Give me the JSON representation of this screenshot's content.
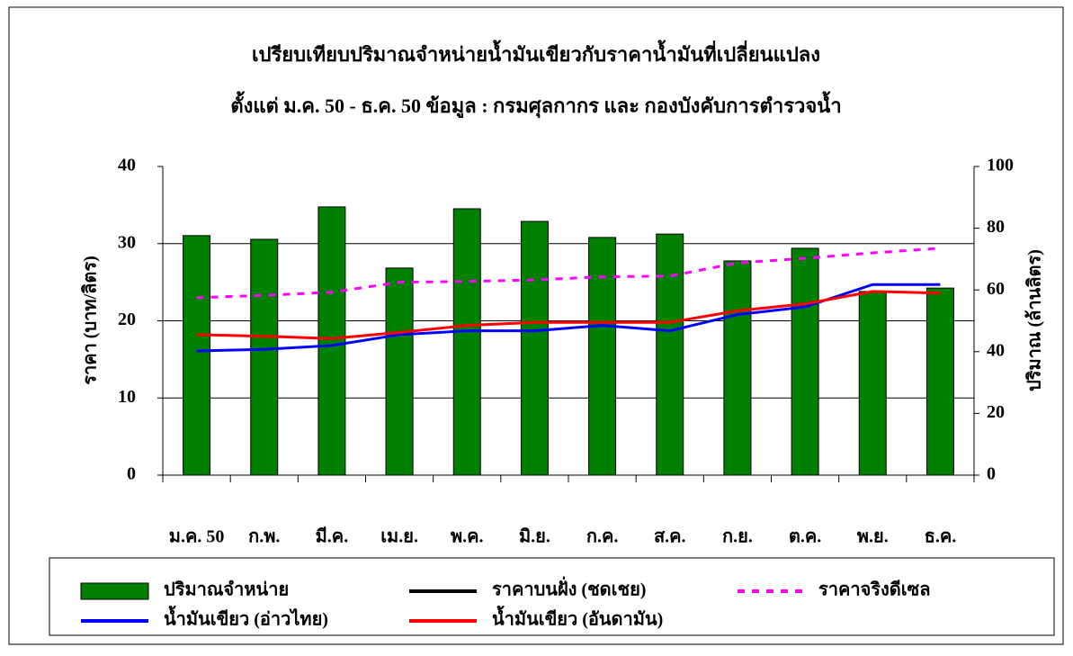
{
  "chart_data": {
    "type": "bar",
    "title": "เปรียบเทียบปริมาณจำหน่ายน้ำมันเขียวกับราคาน้ำมันที่เปลี่ยนแปลง",
    "subtitle": "ตั้งแต่ ม.ค. 50 - ธ.ค. 50    ข้อมูล : กรมศุลกากร  และ กองบังคับการตำรวจน้ำ",
    "y_label": "ราคา (บาท/ลิตร)",
    "y2_label": "ปริมาณ (ล้านลิตร)",
    "categories": [
      "ม.ค. 50",
      "ก.พ.",
      "มี.ค.",
      "เม.ย.",
      "พ.ค.",
      "มิ.ย.",
      "ก.ค.",
      "ส.ค.",
      "ก.ย.",
      "ต.ค.",
      "พ.ย.",
      "ธ.ค."
    ],
    "ylim": [
      0,
      40
    ],
    "yticks": [
      0,
      10,
      20,
      30,
      40
    ],
    "y2lim": [
      0,
      100
    ],
    "y2ticks": [
      0,
      20,
      40,
      60,
      80,
      100
    ],
    "grid": true,
    "series": [
      {
        "name": "ปริมาณจำหน่าย",
        "type": "bar",
        "axis": "y2",
        "color": "#008000",
        "values": [
          77.6,
          76.4,
          86.9,
          67.1,
          86.3,
          82.2,
          77.0,
          78.1,
          69.4,
          73.5,
          59.5,
          60.6
        ]
      },
      {
        "name": "ราคาบนฝั่ง (ชดเชย)",
        "type": "line",
        "color": "#000000",
        "values": [
          null,
          null,
          null,
          null,
          null,
          null,
          null,
          null,
          null,
          null,
          null,
          null
        ]
      },
      {
        "name": "ราคาจริงดีเซล",
        "type": "line",
        "dashed": true,
        "color": "#ff00ff",
        "values": [
          23.0,
          23.3,
          23.7,
          25.0,
          25.1,
          25.3,
          25.7,
          25.8,
          27.5,
          28.1,
          28.8,
          29.4
        ]
      },
      {
        "name": "น้ำมันเขียว (อ่าวไทย)",
        "type": "line",
        "color": "#0000ff",
        "values": [
          16.1,
          16.3,
          16.8,
          18.2,
          18.7,
          18.7,
          19.4,
          18.7,
          20.8,
          21.8,
          24.7,
          24.7
        ]
      },
      {
        "name": "น้ำมันเขียว (อันดามัน)",
        "type": "line",
        "color": "#ff0000",
        "values": [
          18.2,
          18.0,
          17.7,
          18.5,
          19.4,
          19.8,
          19.8,
          19.8,
          21.3,
          22.2,
          23.8,
          23.6
        ]
      }
    ]
  }
}
